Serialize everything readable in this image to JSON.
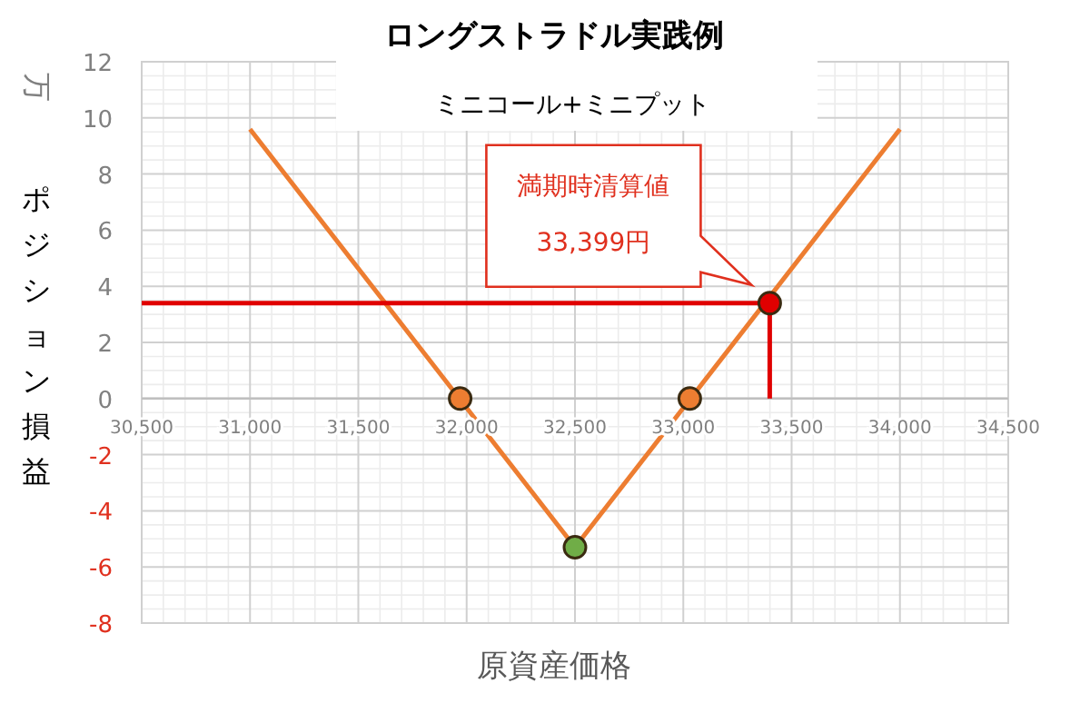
{
  "chart_data": {
    "type": "line",
    "title": "ロングストラドル実践例",
    "subtitle": "ミニコール+ミニプット",
    "xlabel": "原資産価格",
    "ylabel": "ポジション損益",
    "annotations": [
      "万",
      "満期時清算値",
      "33,399円"
    ],
    "xlim": [
      30500,
      34500
    ],
    "ylim": [
      -8,
      12
    ],
    "xticks": [
      {
        "value": 30500,
        "label": "30,500"
      },
      {
        "value": 31000,
        "label": "31,000"
      },
      {
        "value": 31500,
        "label": "31,500"
      },
      {
        "value": 32000,
        "label": "32,000"
      },
      {
        "value": 32500,
        "label": "32,500"
      },
      {
        "value": 33000,
        "label": "33,000"
      },
      {
        "value": 33500,
        "label": "33,500"
      },
      {
        "value": 34000,
        "label": "34,000"
      },
      {
        "value": 34500,
        "label": "34,500"
      }
    ],
    "yticks": [
      -8,
      -6,
      -4,
      -2,
      0,
      2,
      4,
      6,
      8,
      10,
      12
    ],
    "grid": true,
    "line_style": "solid",
    "series": [
      {
        "color": "#ed7d31",
        "marker": "none",
        "x": [
          31000,
          32500,
          34000
        ],
        "values": [
          9.6,
          -5.3,
          9.6
        ]
      },
      {
        "color": "#e00000",
        "marker": "none",
        "x": [
          30500,
          33399
        ],
        "values": [
          3.4,
          3.4
        ]
      },
      {
        "color": "#e00000",
        "marker": "none",
        "x": [
          33399,
          33399
        ],
        "values": [
          0,
          3.4
        ]
      },
      {
        "type": "scatter",
        "marker": "circle",
        "color": "#ed7d31",
        "x": [
          31970,
          33030
        ],
        "values": [
          0,
          0
        ]
      },
      {
        "type": "scatter",
        "marker": "circle",
        "color": "#70ad47",
        "x": [
          32500
        ],
        "values": [
          -5.3
        ]
      },
      {
        "type": "scatter",
        "marker": "circle",
        "color": "#e00000",
        "x": [
          33399
        ],
        "values": [
          3.4
        ]
      }
    ]
  }
}
